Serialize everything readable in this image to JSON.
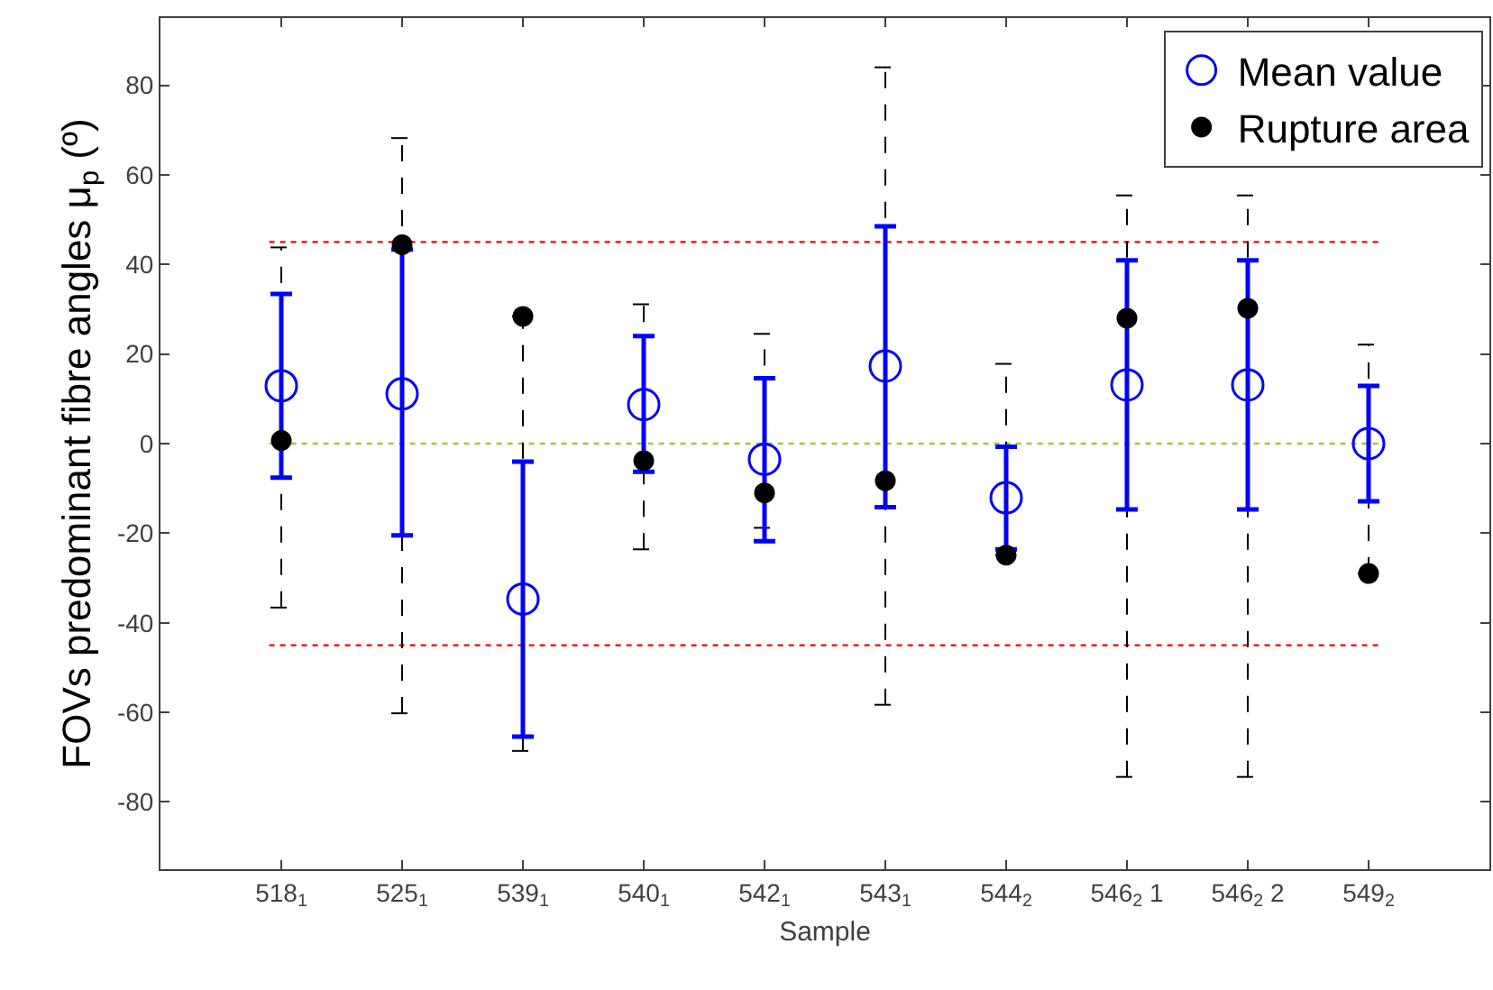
{
  "chart_data": {
    "type": "scatter",
    "xlabel": "Sample",
    "ylabel": "FOVs predominant fibre angles μ$_{p}$ (º)",
    "categories": [
      "518$_{1}$",
      "525$_{1}$",
      "539$_{1}$",
      "540$_{1}$",
      "542$_{1}$",
      "543$_{1}$",
      "544$_{2}$",
      "546$_{2}$ 1",
      "546$_{2}$ 2",
      "549$_{2}$"
    ],
    "series": [
      {
        "name": "Mean value",
        "color": "#0000ff",
        "marker": "circle",
        "line_style": "solid",
        "values": [
          12.9,
          11.1,
          -34.7,
          8.7,
          -3.5,
          17.3,
          -12.1,
          13.1,
          13.1,
          0
        ],
        "errors": [
          [
            -7.6,
            33.4
          ],
          [
            -20.5,
            43.3
          ],
          [
            -65.4,
            -4.0
          ],
          [
            -6.3,
            24.0
          ],
          [
            -21.8,
            14.6
          ],
          [
            -14.2,
            48.5
          ],
          [
            -23.6,
            -0.7
          ],
          [
            -14.7,
            40.9
          ],
          [
            -14.7,
            40.9
          ],
          [
            -12.9,
            12.9
          ]
        ]
      },
      {
        "name": "Rupture area",
        "color": "#000000",
        "marker": "circle",
        "line_style": "dashed",
        "values": [
          0.7,
          44.4,
          28.4,
          -3.8,
          -11.0,
          -8.3,
          -24.9,
          28.0,
          30.2,
          -29.0
        ],
        "errors": [
          [
            -36.6,
            43.8
          ],
          [
            -60.2,
            68.2
          ],
          [
            -68.6,
            28.4
          ],
          [
            -23.6,
            31.1
          ],
          [
            -18.8,
            24.5
          ],
          [
            -58.3,
            84.0
          ],
          [
            -24.9,
            17.8
          ],
          [
            -74.4,
            55.4
          ],
          [
            -74.4,
            55.4
          ],
          [
            -29.0,
            22.1
          ]
        ]
      }
    ],
    "ylim": [
      -95,
      95
    ],
    "yticks": [
      -80,
      -60,
      -40,
      -20,
      0,
      20,
      40,
      60,
      80
    ],
    "ref_lines": [
      {
        "axis": "y",
        "value": 45,
        "color": "#ff0000",
        "line_style": "dotted"
      },
      {
        "axis": "y",
        "value": -45,
        "color": "#ff0000",
        "line_style": "dotted"
      },
      {
        "axis": "y",
        "value": 0,
        "color": "#9acd32",
        "line_style": "dotted"
      }
    ],
    "grid": false,
    "legend": "top right"
  }
}
